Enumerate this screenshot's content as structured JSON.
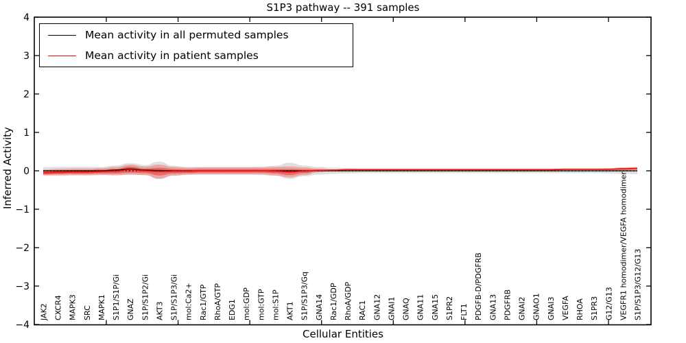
{
  "chart_data": {
    "type": "line",
    "title": "S1P3 pathway -- 391 samples",
    "xlabel": "Cellular Entities",
    "ylabel": "Inferred Activity",
    "ylim": [
      -4,
      4
    ],
    "yticks": [
      4,
      3,
      2,
      1,
      0,
      -1,
      -2,
      -3,
      -4
    ],
    "ytick_labels": [
      "4",
      "3",
      "2",
      "1",
      "0",
      "−1",
      "−2",
      "−3",
      "−4"
    ],
    "grid": false,
    "legend_position": "upper left",
    "categories": [
      "JAK2",
      "CXCR4",
      "MAPK3",
      "SRC",
      "MAPK1",
      "S1P1/S1P/Gi",
      "GNAZ",
      "S1P/S1P2/Gi",
      "AKT3",
      "S1P/S1P3/Gi",
      "mol:Ca2+",
      "Rac1/GTP",
      "RhoA/GTP",
      "EDG1",
      "mol:GDP",
      "mol:GTP",
      "mol:S1P",
      "AKT1",
      "S1P/S1P3/Gq",
      "GNA14",
      "Rac1/GDP",
      "RhoA/GDP",
      "RAC1",
      "GNA12",
      "GNAI1",
      "GNAQ",
      "GNA11",
      "GNA15",
      "S1PR2",
      "FLT1",
      "PDGFB-D/PDGFRB",
      "GNA13",
      "PDGFRB",
      "GNAI2",
      "GNAO1",
      "GNAI3",
      "VEGFA",
      "RHOA",
      "S1PR3",
      "G12/G13",
      "VEGFR1 homodimer/VEGFA homodimer",
      "S1P/S1P3/G12/G13"
    ],
    "legend": [
      {
        "label": "Mean activity in all permuted samples",
        "color": "#000000"
      },
      {
        "label": "Mean activity in patient samples",
        "color": "#ff0000"
      }
    ],
    "series": [
      {
        "name": "Mean activity in all permuted samples",
        "color": "#000000",
        "width": 1.3,
        "values": [
          0,
          0,
          0,
          0,
          0,
          0.02,
          0.05,
          0.02,
          0.01,
          0,
          0,
          0,
          0,
          0,
          0,
          0,
          0,
          0,
          0,
          0,
          0,
          0,
          0,
          0,
          0,
          0,
          0,
          0,
          0,
          0,
          0,
          0,
          0,
          0,
          0,
          0,
          0,
          0,
          0,
          0,
          0,
          0
        ]
      },
      {
        "name": "Mean activity in patient samples",
        "color": "#f01510",
        "width": 1.8,
        "values": [
          -0.05,
          -0.04,
          -0.03,
          -0.03,
          -0.02,
          -0.01,
          0.03,
          0,
          -0.02,
          -0.01,
          -0.01,
          0,
          0,
          0,
          0,
          0,
          -0.01,
          -0.03,
          -0.01,
          0.01,
          0.02,
          0.03,
          0.03,
          0.03,
          0.03,
          0.03,
          0.03,
          0.03,
          0.03,
          0.03,
          0.03,
          0.03,
          0.03,
          0.03,
          0.03,
          0.03,
          0.04,
          0.04,
          0.04,
          0.04,
          0.05,
          0.06
        ]
      }
    ],
    "zero_reference_line": {
      "y": 0,
      "style": "dotted",
      "color": "#000000"
    },
    "bands": [
      {
        "name": "permuted-distribution-band",
        "color": "rgba(110,110,110,0.22)",
        "center_series": 0,
        "halfwidths": [
          0.09,
          0.1,
          0.1,
          0.1,
          0.1,
          0.12,
          0.15,
          0.13,
          0.23,
          0.13,
          0.1,
          0.1,
          0.1,
          0.1,
          0.1,
          0.11,
          0.13,
          0.21,
          0.14,
          0.1,
          0.08,
          0.07,
          0.06,
          0.06,
          0.06,
          0.06,
          0.06,
          0.06,
          0.06,
          0.06,
          0.06,
          0.06,
          0.06,
          0.06,
          0.06,
          0.06,
          0.06,
          0.06,
          0.06,
          0.07,
          0.08,
          0.09
        ]
      },
      {
        "name": "patient-distribution-band-outer",
        "color": "rgba(255,45,35,0.30)",
        "center_series": 1,
        "halfwidths": [
          0.08,
          0.09,
          0.09,
          0.09,
          0.09,
          0.11,
          0.13,
          0.11,
          0.18,
          0.11,
          0.09,
          0.09,
          0.09,
          0.09,
          0.09,
          0.09,
          0.11,
          0.14,
          0.1,
          0.05,
          0.01,
          0,
          0,
          0,
          0,
          0,
          0,
          0,
          0,
          0,
          0,
          0,
          0,
          0,
          0,
          0,
          0,
          0,
          0,
          0.02,
          0.04,
          0.04
        ]
      },
      {
        "name": "patient-distribution-band-inner",
        "color": "rgba(235,20,20,0.42)",
        "center_series": 1,
        "halfwidths": [
          0.05,
          0.05,
          0.05,
          0.05,
          0.05,
          0.06,
          0.08,
          0.06,
          0.1,
          0.06,
          0.05,
          0.05,
          0.05,
          0.05,
          0.05,
          0.05,
          0.06,
          0.08,
          0.05,
          0.02,
          0,
          0,
          0,
          0,
          0,
          0,
          0,
          0,
          0,
          0,
          0,
          0,
          0,
          0,
          0,
          0,
          0,
          0,
          0,
          0.01,
          0.02,
          0.02
        ]
      }
    ]
  }
}
